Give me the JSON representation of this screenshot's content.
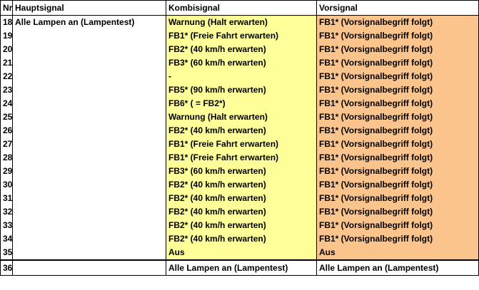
{
  "headers": {
    "nr": "Nr.",
    "hauptsignal": "Hauptsignal",
    "kombisignal": "Kombisignal",
    "vorsignal": "Vorsignal"
  },
  "rows": [
    {
      "nr": "18",
      "haupt": "Alle Lampen an (Lampentest)",
      "kombi": "Warnung (Halt erwarten)",
      "vor": "FB1* (Vorsignalbegriff folgt)"
    },
    {
      "nr": "19",
      "haupt": "",
      "kombi": "FB1* (Freie Fahrt erwarten)",
      "vor": "FB1* (Vorsignalbegriff folgt)"
    },
    {
      "nr": "20",
      "haupt": "",
      "kombi": "FB2* (40 km/h erwarten)",
      "vor": "FB1* (Vorsignalbegriff folgt)"
    },
    {
      "nr": "21",
      "haupt": "",
      "kombi": "FB3* (60 km/h erwarten)",
      "vor": "FB1* (Vorsignalbegriff folgt)"
    },
    {
      "nr": "22",
      "haupt": "",
      "kombi": "-",
      "vor": "FB1* (Vorsignalbegriff folgt)"
    },
    {
      "nr": "23",
      "haupt": "",
      "kombi": "FB5* (90 km/h erwarten)",
      "vor": "FB1* (Vorsignalbegriff folgt)"
    },
    {
      "nr": "24",
      "haupt": "",
      "kombi": "FB6* ( = FB2*)",
      "vor": "FB1* (Vorsignalbegriff folgt)"
    },
    {
      "nr": "25",
      "haupt": "",
      "kombi": "Warnung (Halt erwarten)",
      "vor": "FB1* (Vorsignalbegriff folgt)"
    },
    {
      "nr": "26",
      "haupt": "",
      "kombi": "FB2* (40 km/h erwarten)",
      "vor": "FB1* (Vorsignalbegriff folgt)"
    },
    {
      "nr": "27",
      "haupt": "",
      "kombi": "FB1* (Freie Fahrt erwarten)",
      "vor": "FB1* (Vorsignalbegriff folgt)"
    },
    {
      "nr": "28",
      "haupt": "",
      "kombi": "FB1* (Freie Fahrt erwarten)",
      "vor": "FB1* (Vorsignalbegriff folgt)"
    },
    {
      "nr": "29",
      "haupt": "",
      "kombi": "FB3* (60 km/h erwarten)",
      "vor": "FB1* (Vorsignalbegriff folgt)"
    },
    {
      "nr": "30",
      "haupt": "",
      "kombi": "FB2* (40 km/h erwarten)",
      "vor": "FB1* (Vorsignalbegriff folgt)"
    },
    {
      "nr": "31",
      "haupt": "",
      "kombi": "FB2* (40 km/h erwarten)",
      "vor": "FB1* (Vorsignalbegriff folgt)"
    },
    {
      "nr": "32",
      "haupt": "",
      "kombi": "FB2* (40 km/h erwarten)",
      "vor": "FB1* (Vorsignalbegriff folgt)"
    },
    {
      "nr": "33",
      "haupt": "",
      "kombi": "FB2* (40 km/h erwarten)",
      "vor": "FB1* (Vorsignalbegriff folgt)"
    },
    {
      "nr": "34",
      "haupt": "",
      "kombi": "FB2* (40 km/h erwarten)",
      "vor": "FB1* (Vorsignalbegriff folgt)"
    },
    {
      "nr": "35",
      "haupt": "",
      "kombi": "Aus",
      "vor": "Aus"
    }
  ],
  "footer_row": {
    "nr": "36",
    "haupt": "",
    "kombi": "Alle Lampen an (Lampentest)",
    "vor": "Alle Lampen an (Lampentest)"
  },
  "colors": {
    "kombisignal_fill": "#ffff99",
    "vorsignal_fill": "#fbc48c"
  }
}
